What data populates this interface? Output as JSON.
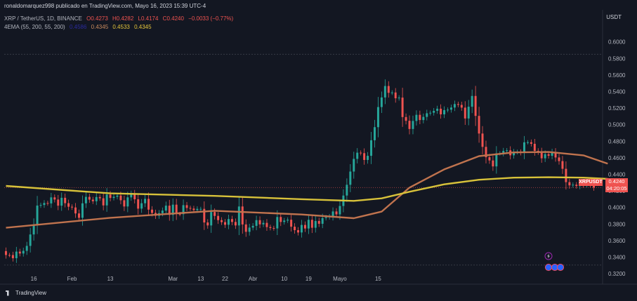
{
  "header": {
    "publisher": "ronaldomarquez998 publicado en TradingView.com, Mayo 16, 2023 15:39 UTC-4"
  },
  "legend": {
    "symbol": "XRP / TetherUS, 1D, BINANCE",
    "open": "O0.4273",
    "high": "H0.4282",
    "low": "L0.4174",
    "close": "C0.4240",
    "change": "−0.0033 (−0.77%)",
    "ema_title": "4EMA (55, 200, 55, 200)",
    "ema_values": [
      "0.4586",
      "0.4345",
      "0.4533",
      "0.4345"
    ]
  },
  "axis": {
    "currency": "USDT",
    "y_ticks": [
      "0.6000",
      "0.5800",
      "0.5600",
      "0.5400",
      "0.5200",
      "0.5000",
      "0.4800",
      "0.4600",
      "0.4400",
      "0.4200",
      "0.4000",
      "0.3800",
      "0.3600",
      "0.3400",
      "0.3200"
    ],
    "x_ticks": [
      "16",
      "Feb",
      "13",
      "Mar",
      "13",
      "22",
      "Abr",
      "10",
      "19",
      "Mayo",
      "15"
    ]
  },
  "price_tag": {
    "symbol": "XRPUSDT",
    "price": "0.4240",
    "countdown": "04:20:05"
  },
  "brand": "TradingView",
  "colors": {
    "up": "#26a69a",
    "down": "#ef5350",
    "ema55": "#c0734e",
    "ema200": "#d8c23a",
    "background": "#131722"
  },
  "chart_data": {
    "type": "candlestick",
    "title": "XRP / TetherUS, 1D, BINANCE",
    "ylabel": "USDT",
    "ylim": [
      0.3133,
      0.6167
    ],
    "grid": false,
    "x_ticks": [
      "16",
      "Feb",
      "13",
      "Mar",
      "13",
      "22",
      "Abr",
      "10",
      "19",
      "Mayo",
      "15"
    ],
    "close": [
      0.3426,
      0.3425,
      0.3387,
      0.3467,
      0.3444,
      0.3476,
      0.3536,
      0.3674,
      0.3795,
      0.4023,
      0.403,
      0.4054,
      0.4049,
      0.4122,
      0.4096,
      0.4022,
      0.4117,
      0.4052,
      0.4009,
      0.4,
      0.3928,
      0.3875,
      0.405,
      0.4128,
      0.4095,
      0.4075,
      0.4126,
      0.4111,
      0.4025,
      0.4156,
      0.4115,
      0.4129,
      0.4144,
      0.4087,
      0.4012,
      0.4122,
      0.4162,
      0.4099,
      0.3986,
      0.4051,
      0.4104,
      0.3974,
      0.3934,
      0.39,
      0.3931,
      0.3962,
      0.4022,
      0.391,
      0.4034,
      0.392,
      0.3919,
      0.4028,
      0.3994,
      0.3987,
      0.3968,
      0.3983,
      0.3983,
      0.3819,
      0.3783,
      0.3945,
      0.3898,
      0.3847,
      0.3823,
      0.3791,
      0.386,
      0.3825,
      0.3783,
      0.4012,
      0.3795,
      0.3706,
      0.3757,
      0.3778,
      0.3847,
      0.3796,
      0.3814,
      0.3763,
      0.3752,
      0.3747,
      0.3885,
      0.3825,
      0.3842,
      0.3852,
      0.3768,
      0.3726,
      0.3698,
      0.3789,
      0.3746,
      0.3851,
      0.3755,
      0.3837,
      0.3803,
      0.3872,
      0.3882,
      0.3892,
      0.3952,
      0.3917,
      0.4018,
      0.4144,
      0.4274,
      0.4434,
      0.4587,
      0.4662,
      0.4656,
      0.4574,
      0.4624,
      0.4812,
      0.497,
      0.5213,
      0.5329,
      0.5467,
      0.5385,
      0.5389,
      0.5319,
      0.5327,
      0.5092,
      0.5047,
      0.4948,
      0.5045,
      0.5119,
      0.5056,
      0.5094,
      0.5138,
      0.5144,
      0.5167,
      0.5193,
      0.5125,
      0.5176,
      0.5181,
      0.5207,
      0.5249,
      0.5239,
      0.5206,
      0.5075,
      0.5217,
      0.5347,
      0.5106,
      0.4893,
      0.4732,
      0.4607,
      0.4568,
      0.4496,
      0.4653,
      0.4654,
      0.4683,
      0.469,
      0.463,
      0.4667,
      0.4672,
      0.4659,
      0.4787,
      0.4788,
      0.4769,
      0.4684,
      0.4667,
      0.4594,
      0.4644,
      0.4624,
      0.4667,
      0.4604,
      0.456,
      0.4467,
      0.4306,
      0.4267,
      0.4275,
      0.4259,
      0.4295,
      0.4273,
      0.4287,
      0.4273,
      0.424
    ],
    "open": [
      0.3473,
      0.3426,
      0.3425,
      0.3387,
      0.3467,
      0.3444,
      0.3476,
      0.3536,
      0.3674,
      0.3795,
      0.4023,
      0.403,
      0.4054,
      0.4049,
      0.4122,
      0.4096,
      0.4022,
      0.4117,
      0.4052,
      0.4009,
      0.4,
      0.3928,
      0.3875,
      0.405,
      0.4128,
      0.4095,
      0.4075,
      0.4126,
      0.4111,
      0.4025,
      0.4156,
      0.4115,
      0.4129,
      0.4144,
      0.4087,
      0.4012,
      0.4122,
      0.4162,
      0.4099,
      0.3986,
      0.4051,
      0.4104,
      0.3974,
      0.3934,
      0.39,
      0.3931,
      0.3962,
      0.4022,
      0.391,
      0.4034,
      0.392,
      0.3919,
      0.4028,
      0.3994,
      0.3987,
      0.3968,
      0.3983,
      0.3983,
      0.3819,
      0.3783,
      0.3945,
      0.3898,
      0.3847,
      0.3823,
      0.3791,
      0.386,
      0.3825,
      0.3783,
      0.4012,
      0.3795,
      0.3706,
      0.3757,
      0.3778,
      0.3847,
      0.3796,
      0.3814,
      0.3763,
      0.3752,
      0.3747,
      0.3885,
      0.3825,
      0.3842,
      0.3852,
      0.3768,
      0.3726,
      0.3698,
      0.3789,
      0.3746,
      0.3851,
      0.3755,
      0.3837,
      0.3803,
      0.3872,
      0.3882,
      0.3892,
      0.3952,
      0.3917,
      0.4018,
      0.4144,
      0.4274,
      0.4434,
      0.4587,
      0.4662,
      0.4656,
      0.4574,
      0.4624,
      0.4812,
      0.497,
      0.5213,
      0.5329,
      0.5467,
      0.5385,
      0.5389,
      0.5319,
      0.5327,
      0.5092,
      0.5047,
      0.4948,
      0.5045,
      0.5119,
      0.5056,
      0.5094,
      0.5138,
      0.5144,
      0.5167,
      0.5193,
      0.5125,
      0.5176,
      0.5181,
      0.5207,
      0.5249,
      0.5239,
      0.5206,
      0.5075,
      0.5217,
      0.5347,
      0.5106,
      0.4893,
      0.4732,
      0.4607,
      0.4568,
      0.4496,
      0.4653,
      0.4654,
      0.4683,
      0.469,
      0.463,
      0.4667,
      0.4672,
      0.4659,
      0.4787,
      0.4788,
      0.4769,
      0.4684,
      0.4667,
      0.4594,
      0.4644,
      0.4624,
      0.4667,
      0.4604,
      0.456,
      0.4467,
      0.4306,
      0.4267,
      0.4275,
      0.4259,
      0.4295,
      0.4273,
      0.4287,
      0.4273
    ],
    "series": [
      {
        "name": "EMA 55",
        "color": "#c0734e",
        "points": [
          [
            0,
            0.3755
          ],
          [
            30,
            0.3875
          ],
          [
            60,
            0.396
          ],
          [
            85,
            0.3915
          ],
          [
            100,
            0.387
          ],
          [
            108,
            0.395
          ],
          [
            116,
            0.424
          ],
          [
            126,
            0.446
          ],
          [
            136,
            0.462
          ],
          [
            146,
            0.4665
          ],
          [
            156,
            0.467
          ],
          [
            166,
            0.463
          ],
          [
            173,
            0.453
          ]
        ]
      },
      {
        "name": "EMA 200",
        "color": "#d8c23a",
        "points": [
          [
            0,
            0.426
          ],
          [
            30,
            0.417
          ],
          [
            60,
            0.414
          ],
          [
            85,
            0.41
          ],
          [
            100,
            0.408
          ],
          [
            108,
            0.411
          ],
          [
            116,
            0.419
          ],
          [
            126,
            0.428
          ],
          [
            136,
            0.4335
          ],
          [
            146,
            0.436
          ],
          [
            156,
            0.4365
          ],
          [
            166,
            0.436
          ],
          [
            173,
            0.4345
          ]
        ]
      }
    ]
  }
}
